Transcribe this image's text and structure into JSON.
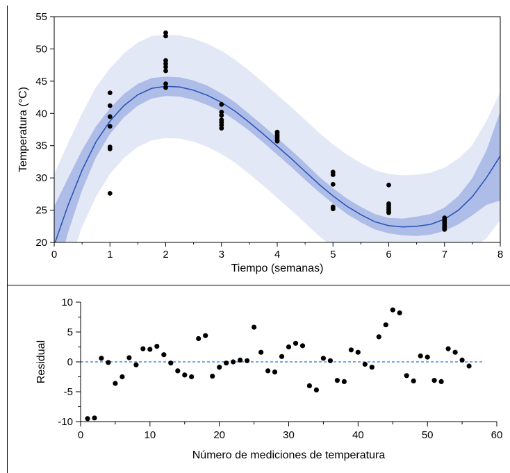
{
  "chart_data": [
    {
      "type": "scatter",
      "xlabel": "Tiempo (semanas)",
      "ylabel": "Temperatura (°C)",
      "xlim": [
        0,
        8
      ],
      "ylim": [
        20,
        55
      ],
      "xticks": [
        0,
        1,
        2,
        3,
        4,
        5,
        6,
        7,
        8
      ],
      "yticks": [
        20,
        25,
        30,
        35,
        40,
        45,
        50,
        55
      ],
      "grid": false,
      "colors": {
        "fit_line": "#2a55b5",
        "confidence_band": "#aebde8",
        "prediction_band": "#e3e8f7",
        "points": "#000000"
      },
      "fit_curve": {
        "x": [
          0,
          0.25,
          0.5,
          0.75,
          1,
          1.25,
          1.5,
          1.75,
          2,
          2.25,
          2.5,
          2.75,
          3,
          3.25,
          3.5,
          3.75,
          4,
          4.25,
          4.5,
          4.75,
          5,
          5.25,
          5.5,
          5.75,
          6,
          6.25,
          6.5,
          6.75,
          7,
          7.25,
          7.5,
          7.75,
          8
        ],
        "y": [
          19.6,
          25.8,
          31.2,
          35.6,
          38.8,
          41.2,
          42.9,
          43.9,
          44.2,
          44.1,
          43.6,
          42.8,
          41.7,
          40.3,
          38.6,
          36.8,
          34.9,
          33.0,
          31.0,
          29.0,
          27.2,
          25.6,
          24.3,
          23.2,
          22.6,
          22.4,
          22.5,
          22.8,
          23.6,
          25.0,
          27.1,
          30.0,
          33.4
        ]
      },
      "confidence_band": {
        "x": [
          0,
          0.25,
          0.5,
          0.75,
          1,
          1.25,
          1.5,
          1.75,
          2,
          2.25,
          2.5,
          2.75,
          3,
          3.25,
          3.5,
          3.75,
          4,
          4.25,
          4.5,
          4.75,
          5,
          5.25,
          5.5,
          5.75,
          6,
          6.25,
          6.5,
          6.75,
          7,
          7.25,
          7.5,
          7.75,
          8
        ],
        "lower": [
          13.6,
          21.6,
          28.1,
          33.2,
          36.8,
          39.4,
          41.2,
          42.3,
          42.7,
          42.6,
          42.1,
          41.3,
          40.3,
          38.9,
          37.3,
          35.5,
          33.6,
          31.7,
          29.7,
          27.8,
          26.0,
          24.4,
          23.1,
          22.0,
          21.4,
          21.1,
          21.0,
          21.2,
          21.8,
          22.8,
          24.2,
          25.8,
          26.5
        ],
        "upper": [
          25.6,
          30.0,
          34.3,
          38.0,
          40.8,
          43.0,
          44.6,
          45.5,
          45.7,
          45.6,
          45.1,
          44.3,
          43.1,
          41.7,
          39.9,
          38.1,
          36.2,
          34.3,
          32.3,
          30.2,
          28.4,
          26.8,
          25.5,
          24.4,
          23.8,
          23.7,
          24.0,
          24.4,
          25.4,
          27.2,
          30.0,
          34.2,
          40.3
        ]
      },
      "prediction_band": {
        "x": [
          0,
          0.25,
          0.5,
          0.75,
          1,
          1.25,
          1.5,
          1.75,
          2,
          2.25,
          2.5,
          2.75,
          3,
          3.25,
          3.5,
          3.75,
          4,
          4.25,
          4.5,
          4.75,
          5,
          5.25,
          5.5,
          5.75,
          6,
          6.25,
          6.5,
          6.75,
          7,
          7.25,
          7.5,
          7.75,
          8
        ],
        "lower": [
          8.6,
          16.2,
          22.4,
          27.1,
          30.6,
          33.1,
          34.8,
          35.8,
          36.2,
          36.1,
          35.6,
          34.8,
          33.7,
          32.3,
          30.6,
          28.8,
          26.9,
          25.0,
          23.0,
          21.0,
          19.2,
          17.6,
          16.3,
          15.2,
          14.6,
          14.4,
          14.5,
          14.8,
          15.6,
          17.0,
          19.1,
          20.6,
          23.5
        ],
        "upper": [
          30.6,
          35.4,
          40.0,
          44.1,
          47.0,
          49.3,
          51.0,
          52.0,
          52.2,
          52.1,
          51.6,
          50.8,
          49.7,
          48.3,
          46.6,
          44.8,
          42.9,
          41.0,
          39.0,
          37.0,
          35.2,
          33.6,
          32.3,
          31.2,
          30.6,
          30.4,
          30.5,
          30.8,
          31.6,
          33.0,
          35.1,
          38.8,
          43.3
        ]
      },
      "points": [
        {
          "x": 1,
          "y": 43.2
        },
        {
          "x": 1,
          "y": 41.2
        },
        {
          "x": 1,
          "y": 39.5
        },
        {
          "x": 1,
          "y": 38.0
        },
        {
          "x": 1,
          "y": 34.8
        },
        {
          "x": 1,
          "y": 34.5
        },
        {
          "x": 1,
          "y": 27.6
        },
        {
          "x": 2,
          "y": 52.5
        },
        {
          "x": 2,
          "y": 52.0
        },
        {
          "x": 2,
          "y": 48.2
        },
        {
          "x": 2,
          "y": 47.7
        },
        {
          "x": 2,
          "y": 47.2
        },
        {
          "x": 2,
          "y": 46.6
        },
        {
          "x": 2,
          "y": 44.6
        },
        {
          "x": 2,
          "y": 44.0
        },
        {
          "x": 3,
          "y": 41.4
        },
        {
          "x": 3,
          "y": 40.2
        },
        {
          "x": 3,
          "y": 39.7
        },
        {
          "x": 3,
          "y": 39.0
        },
        {
          "x": 3,
          "y": 38.6
        },
        {
          "x": 3,
          "y": 38.2
        },
        {
          "x": 3,
          "y": 37.7
        },
        {
          "x": 4,
          "y": 37.1
        },
        {
          "x": 4,
          "y": 36.8
        },
        {
          "x": 4,
          "y": 36.5
        },
        {
          "x": 4,
          "y": 36.2
        },
        {
          "x": 4,
          "y": 35.9
        },
        {
          "x": 4,
          "y": 35.7
        },
        {
          "x": 5,
          "y": 30.9
        },
        {
          "x": 5,
          "y": 30.5
        },
        {
          "x": 5,
          "y": 29.0
        },
        {
          "x": 5,
          "y": 25.5
        },
        {
          "x": 5,
          "y": 25.2
        },
        {
          "x": 6,
          "y": 28.9
        },
        {
          "x": 6,
          "y": 26.0
        },
        {
          "x": 6,
          "y": 25.7
        },
        {
          "x": 6,
          "y": 25.4
        },
        {
          "x": 6,
          "y": 25.1
        },
        {
          "x": 6,
          "y": 24.8
        },
        {
          "x": 6,
          "y": 24.6
        },
        {
          "x": 7,
          "y": 23.8
        },
        {
          "x": 7,
          "y": 23.5
        },
        {
          "x": 7,
          "y": 23.2
        },
        {
          "x": 7,
          "y": 22.9
        },
        {
          "x": 7,
          "y": 22.6
        },
        {
          "x": 7,
          "y": 22.3
        },
        {
          "x": 7,
          "y": 22.0
        }
      ]
    },
    {
      "type": "scatter",
      "xlabel": "Número de mediciones de temperatura",
      "ylabel": "Residual",
      "xlim": [
        0,
        60
      ],
      "ylim": [
        -10,
        10
      ],
      "xticks": [
        0,
        10,
        20,
        30,
        40,
        50,
        60
      ],
      "yticks": [
        -10,
        -5,
        0,
        5,
        10
      ],
      "grid": false,
      "reference_line": {
        "y": 0,
        "x_range": [
          0,
          58
        ],
        "style": "dashed",
        "color": "#2a6fdb"
      },
      "x": [
        1,
        2,
        3,
        4,
        5,
        6,
        7,
        8,
        9,
        10,
        11,
        12,
        13,
        14,
        15,
        16,
        17,
        18,
        19,
        20,
        21,
        22,
        23,
        24,
        25,
        26,
        27,
        28,
        29,
        30,
        31,
        32,
        33,
        34,
        35,
        36,
        37,
        38,
        39,
        40,
        41,
        42,
        43,
        44,
        45,
        46,
        47,
        48,
        49,
        50,
        51,
        52,
        53,
        54,
        55,
        56
      ],
      "y": [
        -9.5,
        -9.4,
        0.6,
        -0.1,
        -3.6,
        -2.5,
        0.7,
        -0.5,
        2.2,
        2.1,
        2.6,
        1.2,
        -0.2,
        -1.5,
        -2.2,
        -2.5,
        3.9,
        4.4,
        -2.4,
        -0.9,
        -0.2,
        0.0,
        0.3,
        0.2,
        5.8,
        1.6,
        -1.5,
        -1.7,
        0.9,
        2.5,
        3.1,
        2.7,
        -4.0,
        -4.7,
        0.6,
        0.2,
        -3.1,
        -3.3,
        2.0,
        1.6,
        -0.4,
        -0.9,
        4.2,
        6.2,
        8.7,
        8.2,
        -2.3,
        -3.2,
        1.0,
        0.8,
        -3.1,
        -3.3,
        2.2,
        1.6,
        0.3,
        -0.7
      ]
    }
  ]
}
